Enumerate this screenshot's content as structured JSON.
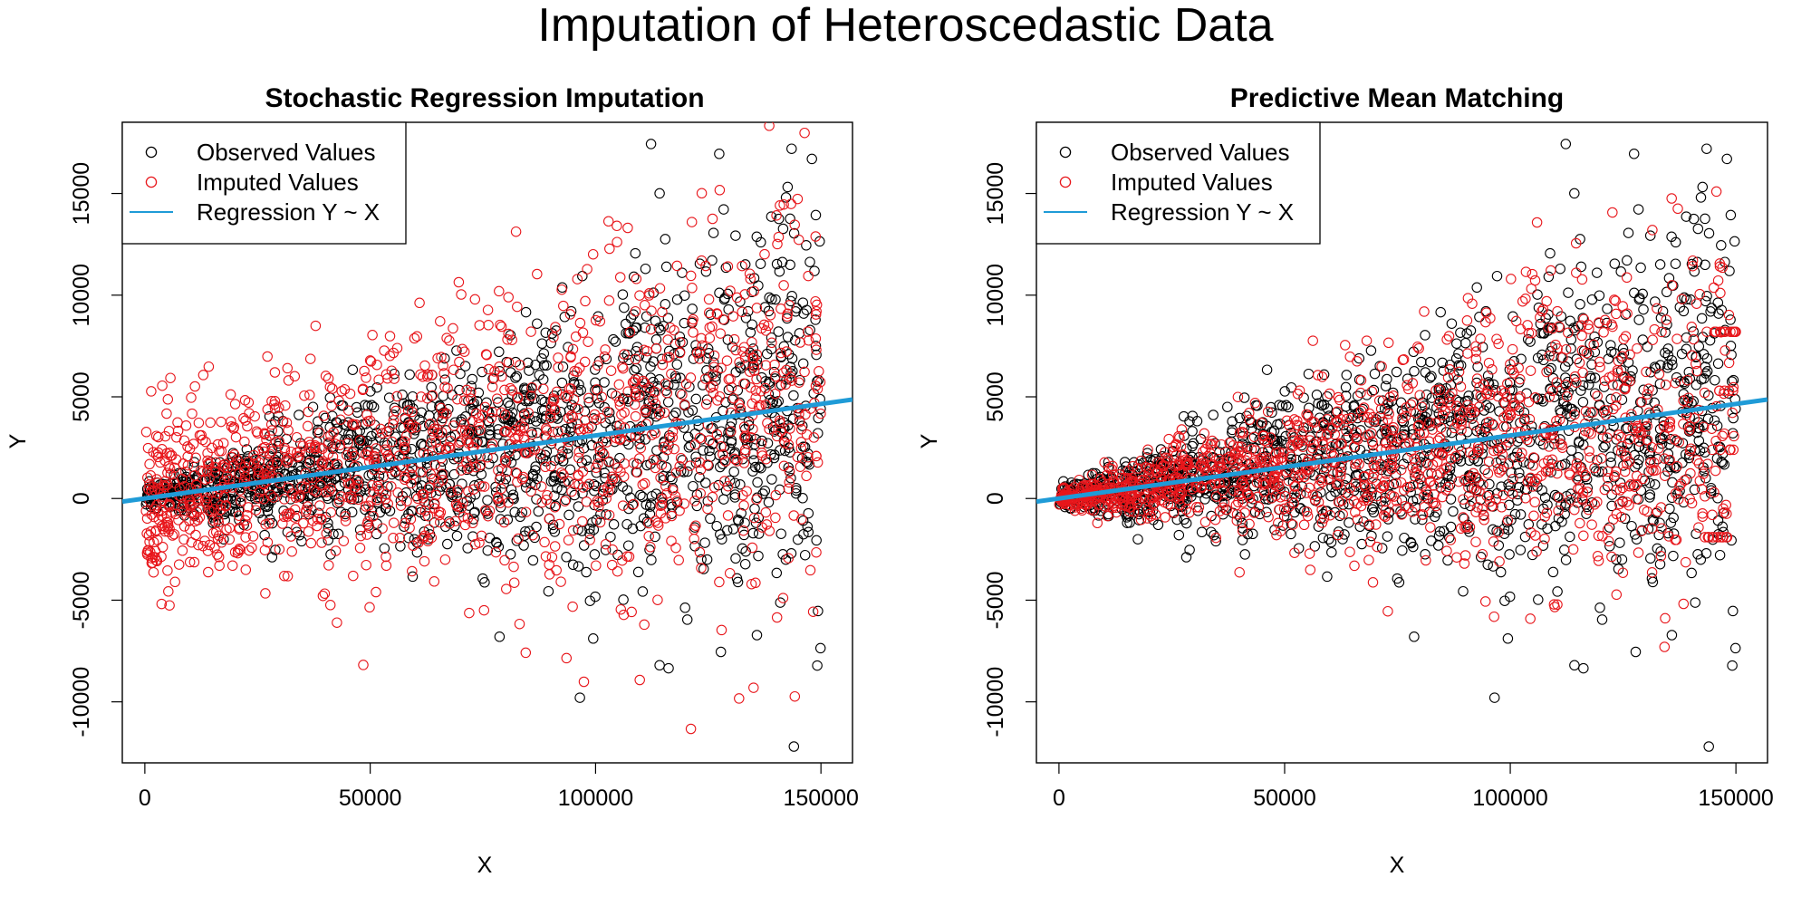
{
  "figure": {
    "title": "Imputation of Heteroscedastic Data",
    "colors": {
      "observed": "#000000",
      "imputed": "#e8161b",
      "regression": "#1f9bd7"
    }
  },
  "chart_data": [
    {
      "type": "scatter",
      "title": "Stochastic Regression Imputation",
      "xlabel": "X",
      "ylabel": "Y",
      "xlim": [
        -5000,
        157000
      ],
      "ylim": [
        -13000,
        18500
      ],
      "xticks": [
        0,
        50000,
        100000,
        150000
      ],
      "yticks": [
        -10000,
        -5000,
        0,
        5000,
        10000,
        15000
      ],
      "legend": {
        "position": "top-left",
        "entries": [
          {
            "label": "Observed Values",
            "marker": "circle",
            "color": "#000000"
          },
          {
            "label": "Imputed Values",
            "marker": "circle",
            "color": "#e8161b"
          },
          {
            "label": "Regression Y ~ X",
            "marker": "line",
            "color": "#1f9bd7"
          }
        ]
      },
      "regression": {
        "intercept": 0,
        "slope": 0.031
      },
      "series": [
        {
          "name": "Observed Values",
          "color": "#000000",
          "x_max": 150000,
          "sd_slope": 0.032,
          "n": 1500,
          "seed": 11
        },
        {
          "name": "Imputed Values",
          "color": "#e8161b",
          "method": "stochastic",
          "sd_base": 2000,
          "sd_slope": 0.02,
          "x_max": 150000,
          "n": 1300,
          "seed": 23
        }
      ],
      "outliers": [
        {
          "x": 144000,
          "y": -12200
        },
        {
          "x": 143500,
          "y": 17200
        },
        {
          "x": 148000,
          "y": 16700
        }
      ]
    },
    {
      "type": "scatter",
      "title": "Predictive Mean Matching",
      "xlabel": "X",
      "ylabel": "Y",
      "xlim": [
        -5000,
        157000
      ],
      "ylim": [
        -13000,
        18500
      ],
      "xticks": [
        0,
        50000,
        100000,
        150000
      ],
      "yticks": [
        -10000,
        -5000,
        0,
        5000,
        10000,
        15000
      ],
      "legend": {
        "position": "top-left",
        "entries": [
          {
            "label": "Observed Values",
            "marker": "circle",
            "color": "#000000"
          },
          {
            "label": "Imputed Values",
            "marker": "circle",
            "color": "#e8161b"
          },
          {
            "label": "Regression Y ~ X",
            "marker": "line",
            "color": "#1f9bd7"
          }
        ]
      },
      "regression": {
        "intercept": 0,
        "slope": 0.031
      },
      "series": [
        {
          "name": "Observed Values",
          "color": "#000000",
          "x_max": 150000,
          "sd_slope": 0.032,
          "n": 1500,
          "seed": 11
        },
        {
          "name": "Imputed Values",
          "color": "#e8161b",
          "method": "pmm",
          "sd_slope": 0.03,
          "x_max": 150000,
          "n": 1300,
          "seed": 37
        }
      ],
      "outliers": [
        {
          "x": 144000,
          "y": -12200
        },
        {
          "x": 143500,
          "y": 17200
        },
        {
          "x": 148000,
          "y": 16700
        }
      ]
    }
  ]
}
